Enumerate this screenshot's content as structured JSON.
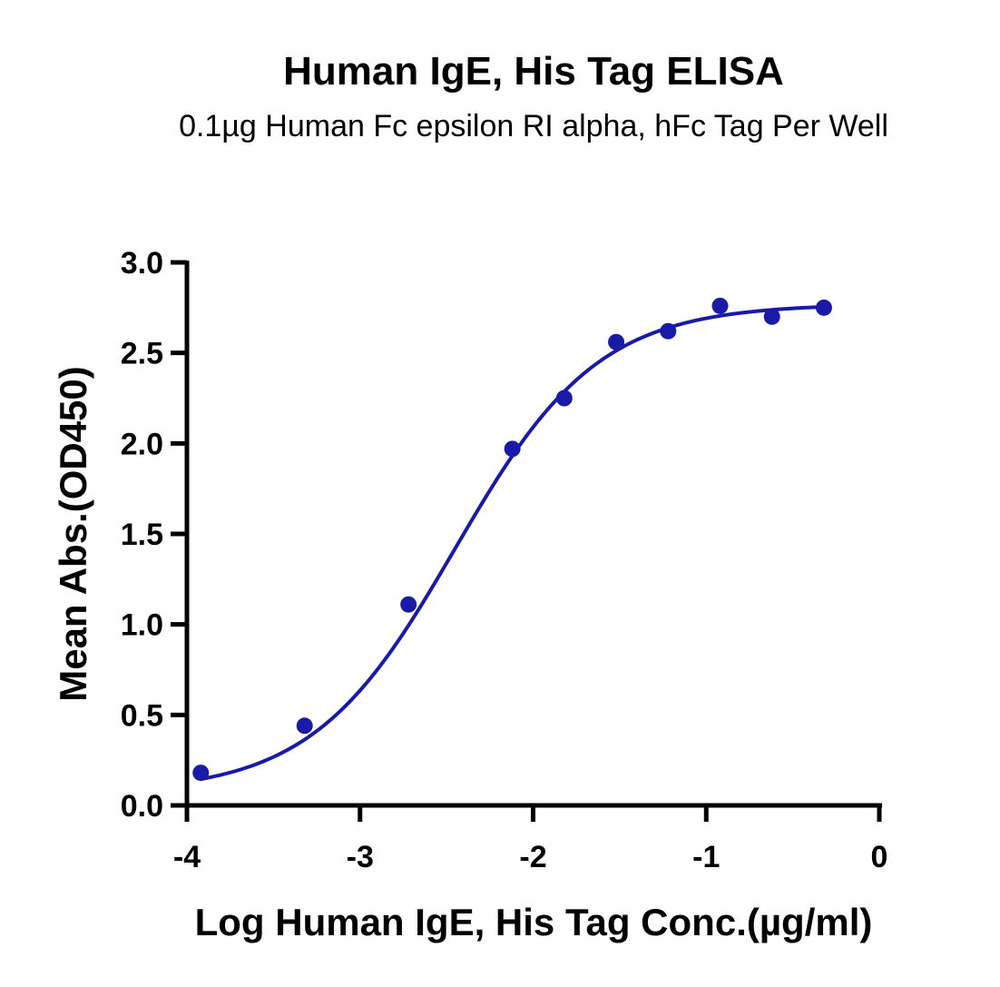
{
  "chart_data": {
    "type": "scatter",
    "title": "Human IgE, His Tag ELISA",
    "subtitle": "0.1µg Human Fc epsilon RI alpha, hFc Tag Per Well",
    "xlabel": "Log Human IgE, His Tag Conc.(µg/ml)",
    "ylabel": "Mean Abs.(OD450)",
    "xlim": [
      -4,
      0
    ],
    "ylim": [
      0,
      3.0
    ],
    "xticks": [
      -4,
      -3,
      -2,
      -1,
      0
    ],
    "xtick_labels": [
      "-4",
      "-3",
      "-2",
      "-1",
      "0"
    ],
    "yticks": [
      0,
      0.5,
      1.0,
      1.5,
      2.0,
      2.5,
      3.0
    ],
    "ytick_labels": [
      "0.0",
      "0.5",
      "1.0",
      "1.5",
      "2.0",
      "2.5",
      "3.0"
    ],
    "grid": false,
    "color": "#1a1aa8",
    "series": [
      {
        "points": [
          {
            "x": -3.92,
            "y": 0.18
          },
          {
            "x": -3.32,
            "y": 0.44
          },
          {
            "x": -2.72,
            "y": 1.11
          },
          {
            "x": -2.12,
            "y": 1.97
          },
          {
            "x": -1.82,
            "y": 2.25
          },
          {
            "x": -1.52,
            "y": 2.56
          },
          {
            "x": -1.22,
            "y": 2.62
          },
          {
            "x": -0.92,
            "y": 2.76
          },
          {
            "x": -0.62,
            "y": 2.7
          },
          {
            "x": -0.32,
            "y": 2.75
          }
        ],
        "fit": {
          "model": "4PL",
          "bottom": 0.07,
          "top": 2.77,
          "logEC50": -2.45,
          "hill": 1.05,
          "x_range": [
            -3.92,
            -0.32
          ]
        }
      }
    ]
  }
}
